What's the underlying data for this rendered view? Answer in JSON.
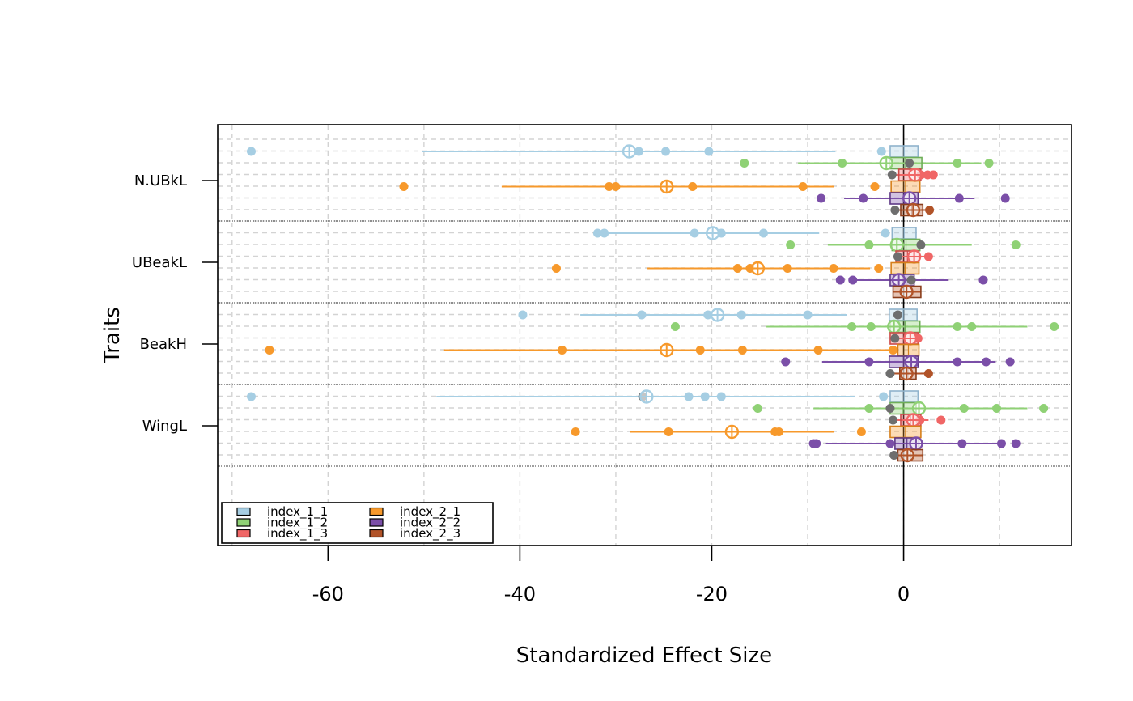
{
  "chart_data": {
    "type": "scatter",
    "subtype": "dot-range plot with box summaries per trait and index",
    "xlabel": "Standardized Effect Size",
    "ylabel": "Traits",
    "xlim": [
      -71.5,
      17.5
    ],
    "x_ticks": [
      -60,
      -40,
      -20,
      0
    ],
    "x_tick_labels": [
      "-60",
      "-40",
      "-20",
      "0"
    ],
    "reference_line_x": 0,
    "grid": true,
    "legend_position": "bottom-left",
    "traits": [
      "N.UBkL",
      "UBeakL",
      "BeakH",
      "WingL"
    ],
    "series": [
      {
        "name": "index_1_1",
        "color": "#a6cee3",
        "border": "#8fb3cc"
      },
      {
        "name": "index_1_2",
        "color": "#8fd175",
        "border": "#6fae58"
      },
      {
        "name": "index_1_3",
        "color": "#f06666",
        "border": "#cc4a4a"
      },
      {
        "name": "index_2_1",
        "color": "#f7992b",
        "border": "#d67f1a"
      },
      {
        "name": "index_2_2",
        "color": "#7b4fa8",
        "border": "#5e3886"
      },
      {
        "name": "index_2_3",
        "color": "#b15328",
        "border": "#8a3d1b"
      }
    ],
    "data": [
      {
        "trait": "N.UBkL",
        "rows": [
          {
            "series": "index_1_1",
            "range": [
              -50.2,
              -7.1
            ],
            "points": [
              -68,
              -27.6,
              -24.8,
              -20.3,
              -2.3
            ],
            "mean": -28.6,
            "box": [
              -1.4,
              1.5
            ],
            "extras": []
          },
          {
            "series": "index_1_2",
            "range": [
              -11,
              8.1
            ],
            "points": [
              -16.6,
              -6.4,
              5.6,
              8.9
            ],
            "mean": -1.8,
            "box": [
              -1.5,
              1.9
            ],
            "extras": [
              0.6
            ]
          },
          {
            "series": "index_1_3",
            "range": [
              -1.2,
              3.1
            ],
            "points": [
              1.8,
              2.5,
              3.1
            ],
            "mean": 1.2,
            "box": [
              -0.5,
              1.8
            ],
            "extras": [
              -1.2
            ]
          },
          {
            "series": "index_2_1",
            "range": [
              -41.9,
              -7.3
            ],
            "points": [
              -52.1,
              -30.7,
              -30.0,
              -22.0,
              -10.5,
              -3.0
            ],
            "mean": -24.7,
            "box": [
              -1.3,
              1.7
            ],
            "extras": []
          },
          {
            "series": "index_2_2",
            "range": [
              -6.2,
              7.4
            ],
            "points": [
              -8.6,
              -4.2,
              5.8,
              10.6
            ],
            "mean": 0.6,
            "box": [
              -1.4,
              1.5
            ],
            "extras": []
          },
          {
            "series": "index_2_3",
            "range": [
              -1.0,
              2.7
            ],
            "points": [
              2.7
            ],
            "mean": 1.0,
            "box": [
              -0.3,
              2.0
            ],
            "extras": [
              -0.9
            ]
          }
        ]
      },
      {
        "trait": "UBeakL",
        "rows": [
          {
            "series": "index_1_1",
            "range": [
              -32.1,
              -8.8
            ],
            "points": [
              -31.9,
              -31.2,
              -21.8,
              -19.0,
              -14.6,
              -1.9
            ],
            "mean": -19.9,
            "box": [
              -1.2,
              1.3
            ],
            "extras": []
          },
          {
            "series": "index_1_2",
            "range": [
              -7.9,
              7.1
            ],
            "points": [
              -11.8,
              -3.6,
              11.7
            ],
            "mean": -0.7,
            "box": [
              -1.2,
              1.7
            ],
            "extras": [
              1.8
            ]
          },
          {
            "series": "index_1_3",
            "range": [
              -0.6,
              2.6
            ],
            "points": [
              2.6
            ],
            "mean": 1.1,
            "box": [
              -0.8,
              1.6
            ],
            "extras": [
              -0.6
            ]
          },
          {
            "series": "index_2_1",
            "range": [
              -26.7,
              -3.5
            ],
            "points": [
              -36.2,
              -17.3,
              -16.0,
              -12.1,
              -7.3,
              -2.6
            ],
            "mean": -15.2,
            "box": [
              -1.3,
              1.6
            ],
            "extras": []
          },
          {
            "series": "index_2_2",
            "range": [
              -5.5,
              4.7
            ],
            "points": [
              -6.6,
              -5.3,
              8.3
            ],
            "mean": -0.5,
            "box": [
              -1.4,
              1.1
            ],
            "extras": [
              0.8
            ]
          },
          {
            "series": "index_2_3",
            "range": [
              -1.1,
              1.8
            ],
            "points": [],
            "mean": 0.3,
            "box": [
              -1.1,
              1.8
            ],
            "extras": []
          }
        ]
      },
      {
        "trait": "BeakH",
        "rows": [
          {
            "series": "index_1_1",
            "range": [
              -33.7,
              -5.9
            ],
            "points": [
              -39.7,
              -27.3,
              -20.4,
              -16.9,
              -10.0
            ],
            "mean": -19.4,
            "box": [
              -1.5,
              1.4
            ],
            "extras": [
              -0.6
            ]
          },
          {
            "series": "index_1_2",
            "range": [
              -14.3,
              12.9
            ],
            "points": [
              -23.8,
              -5.4,
              -3.4,
              5.6,
              7.1,
              15.7
            ],
            "mean": -1.0,
            "box": [
              -1.4,
              1.7
            ],
            "extras": []
          },
          {
            "series": "index_1_3",
            "range": [
              -1.4,
              1.5
            ],
            "points": [
              1.5
            ],
            "mean": 0.7,
            "box": [
              -1.4,
              1.5
            ],
            "extras": [
              -0.9
            ]
          },
          {
            "series": "index_2_1",
            "range": [
              -47.9,
              -1.1
            ],
            "points": [
              -66.1,
              -35.6,
              -21.2,
              -16.8,
              -8.9,
              -1.1
            ],
            "mean": -24.7,
            "box": [
              -0.6,
              1.6
            ],
            "extras": []
          },
          {
            "series": "index_2_2",
            "range": [
              -8.5,
              9.6
            ],
            "points": [
              -12.3,
              -3.6,
              5.6,
              8.6,
              11.1
            ],
            "mean": 0.8,
            "box": [
              -1.5,
              1.5
            ],
            "extras": []
          },
          {
            "series": "index_2_3",
            "range": [
              -1.4,
              2.6
            ],
            "points": [
              2.6
            ],
            "mean": 0.3,
            "box": [
              -0.4,
              1.3
            ],
            "extras": [
              -1.4
            ]
          }
        ]
      },
      {
        "trait": "WingL",
        "rows": [
          {
            "series": "index_1_1",
            "range": [
              -48.7,
              -5.1
            ],
            "points": [
              -68,
              -22.4,
              -20.7,
              -19.0,
              -2.1
            ],
            "mean": -26.8,
            "box": [
              -1.4,
              1.5
            ],
            "extras": [
              -27.2
            ]
          },
          {
            "series": "index_1_2",
            "range": [
              -9.4,
              12.9
            ],
            "points": [
              -15.2,
              -3.6,
              6.3,
              9.7,
              14.6
            ],
            "mean": 1.6,
            "box": [
              -1.4,
              1.3
            ],
            "extras": [
              -1.4
            ]
          },
          {
            "series": "index_1_3",
            "range": [
              -1.1,
              2.6
            ],
            "points": [
              1.7,
              3.9
            ],
            "mean": 1.0,
            "box": [
              -0.3,
              1.8
            ],
            "extras": [
              -1.1
            ]
          },
          {
            "series": "index_2_1",
            "range": [
              -28.5,
              -7.3
            ],
            "points": [
              -34.2,
              -24.5,
              -13.4,
              -13.0,
              -4.4
            ],
            "mean": -17.9,
            "box": [
              -1.4,
              1.8
            ],
            "extras": []
          },
          {
            "series": "index_2_2",
            "range": [
              -8.1,
              10.5
            ],
            "points": [
              -9.1,
              -9.4,
              -1.4,
              6.1,
              10.2,
              11.7
            ],
            "mean": 1.3,
            "box": [
              -0.9,
              1.6
            ],
            "extras": []
          },
          {
            "series": "index_2_3",
            "range": [
              -1.0,
              2.0
            ],
            "points": [],
            "mean": 0.4,
            "box": [
              -0.6,
              2.0
            ],
            "extras": [
              -1.0
            ]
          }
        ]
      }
    ]
  }
}
